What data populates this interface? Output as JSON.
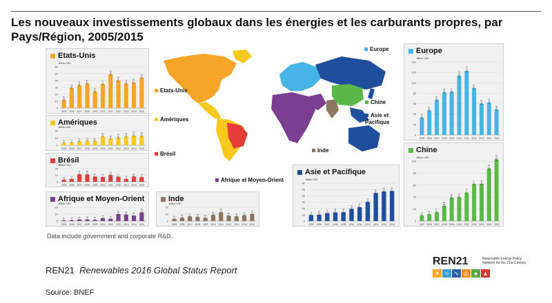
{
  "title": "Les nouveaux investissements globaux dans les énergies et les carburants propres, par Pays/Région, 2005/2015",
  "note": "Data include government and corporate R&D.",
  "report": {
    "org": "REN21",
    "name": "Renewables 2016 Global Status Report"
  },
  "source": "Source: BNEF",
  "logo": {
    "name": "REN21",
    "tagline": "Renewable Energy Policy Network for the 21st Century"
  },
  "map_labels": {
    "etats_unis": "Etats-Unis",
    "ameriques": "Amériques",
    "bresil": "Brésil",
    "afrique": "Afrique et Moyen-Orient",
    "inde": "Inde",
    "europe": "Europe",
    "chine": "Chine",
    "asie": "Asie et Pacifique"
  },
  "colors": {
    "etats_unis": "#f7a528",
    "ameriques": "#f9c81c",
    "bresil": "#e63c3a",
    "afrique": "#7a3f91",
    "inde": "#8c7760",
    "europe": "#46b4e4",
    "chine": "#5ab847",
    "asie": "#1f4e9c"
  },
  "chart_data": [
    {
      "id": "etats_unis",
      "type": "bar",
      "title": "Etats-Unis",
      "ylabel": "Billion USD",
      "categories": [
        "2005",
        "2006",
        "2007",
        "2008",
        "2009",
        "2010",
        "2011",
        "2012",
        "2013",
        "2014",
        "2015"
      ],
      "values": [
        11.9,
        29.1,
        33.2,
        35.5,
        23.9,
        34.7,
        49.0,
        40.0,
        35.3,
        37.0,
        44.1
      ],
      "ylim": [
        0,
        60
      ],
      "ticks": [
        0,
        10,
        20,
        30,
        40,
        50,
        60
      ],
      "color": "#f7a528"
    },
    {
      "id": "ameriques",
      "type": "bar",
      "title": "Amériques",
      "ylabel": "Billion USD",
      "categories": [
        "2005",
        "2006",
        "2007",
        "2008",
        "2009",
        "2010",
        "2011",
        "2012",
        "2013",
        "2014",
        "2015"
      ],
      "values": [
        3.3,
        3.7,
        5.2,
        6.1,
        5.5,
        12.0,
        9.3,
        10.1,
        12.0,
        13.3,
        12.8
      ],
      "ylim": [
        0,
        20
      ],
      "ticks": [
        0,
        10,
        20
      ],
      "color": "#f9c81c"
    },
    {
      "id": "bresil",
      "type": "bar",
      "title": "Brésil",
      "ylabel": "Billion USD",
      "categories": [
        "2005",
        "2006",
        "2007",
        "2008",
        "2009",
        "2010",
        "2011",
        "2012",
        "2013",
        "2014",
        "2015"
      ],
      "values": [
        3.1,
        4.2,
        11.4,
        11.0,
        7.9,
        7.2,
        10.2,
        7.7,
        4.4,
        8.0,
        7.1
      ],
      "ylim": [
        0,
        20
      ],
      "ticks": [
        0,
        10,
        20
      ],
      "color": "#e63c3a"
    },
    {
      "id": "afrique",
      "type": "bar",
      "title": "Afrique et Moyen-Orient",
      "ylabel": "Billion USD",
      "categories": [
        "2005",
        "2006",
        "2007",
        "2008",
        "2009",
        "2010",
        "2011",
        "2012",
        "2013",
        "2014",
        "2015"
      ],
      "values": [
        0.9,
        1.1,
        2.1,
        2.3,
        1.6,
        4.1,
        3.1,
        10.0,
        9.3,
        7.9,
        12.5
      ],
      "ylim": [
        0,
        20
      ],
      "ticks": [
        0,
        10,
        20
      ],
      "color": "#7a3f91"
    },
    {
      "id": "inde",
      "type": "bar",
      "title": "Inde",
      "ylabel": "Billion USD",
      "categories": [
        "2005",
        "2006",
        "2007",
        "2008",
        "2009",
        "2010",
        "2011",
        "2012",
        "2013",
        "2014",
        "2015"
      ],
      "values": [
        3.0,
        4.9,
        6.7,
        5.8,
        4.6,
        8.8,
        12.6,
        7.8,
        6.6,
        8.3,
        10.2
      ],
      "ylim": [
        0,
        20
      ],
      "ticks": [
        0,
        10,
        20
      ],
      "color": "#8c7760"
    },
    {
      "id": "asie",
      "type": "bar",
      "title": "Asie et Pacifique",
      "ylabel": "Billion USD",
      "categories": [
        "2005",
        "2006",
        "2007",
        "2008",
        "2009",
        "2010",
        "2011",
        "2012",
        "2013",
        "2014",
        "2015"
      ],
      "values": [
        9.4,
        10.0,
        12.4,
        13.6,
        13.9,
        19.3,
        22.0,
        30.2,
        44.4,
        46.8,
        47.6
      ],
      "ylim": [
        0,
        60
      ],
      "ticks": [
        0,
        10,
        20,
        30,
        40,
        50,
        60
      ],
      "color": "#1f4e9c"
    },
    {
      "id": "europe",
      "type": "bar",
      "title": "Europe",
      "ylabel": "Billion USD",
      "categories": [
        "2005",
        "2006",
        "2007",
        "2008",
        "2009",
        "2010",
        "2011",
        "2012",
        "2013",
        "2014",
        "2015"
      ],
      "values": [
        33.3,
        46.9,
        66.8,
        81.8,
        82.7,
        113.4,
        122.9,
        89.6,
        60.0,
        62.0,
        48.8
      ],
      "ylim": [
        0,
        140
      ],
      "ticks": [
        0,
        20,
        40,
        60,
        80,
        100,
        120,
        140
      ],
      "color": "#46b4e4"
    },
    {
      "id": "chine",
      "type": "bar",
      "title": "Chine",
      "ylabel": "Billion USD",
      "categories": [
        "2005",
        "2006",
        "2007",
        "2008",
        "2009",
        "2010",
        "2011",
        "2012",
        "2013",
        "2014",
        "2015"
      ],
      "values": [
        9.3,
        11.2,
        14.7,
        25.6,
        38.8,
        39.6,
        47.4,
        61.7,
        62.0,
        87.8,
        102.9
      ],
      "ylim": [
        0,
        100
      ],
      "ticks": [
        0,
        20,
        40,
        60,
        80,
        100
      ],
      "color": "#5ab847"
    }
  ]
}
